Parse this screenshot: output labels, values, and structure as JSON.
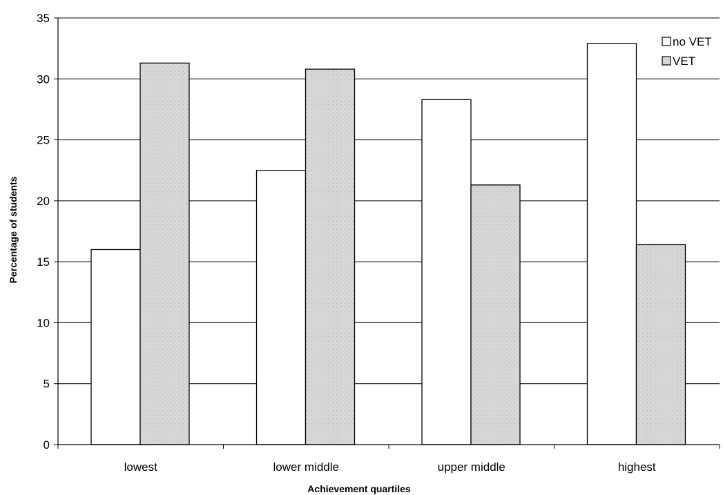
{
  "chart_data": {
    "type": "bar",
    "xlabel": "Achievement quartiles",
    "ylabel": "Percentage of students",
    "ylim": [
      0,
      35
    ],
    "yticks": [
      0,
      5,
      10,
      15,
      20,
      25,
      30,
      35
    ],
    "grid": true,
    "legend_position": "top-right",
    "categories": [
      "lowest",
      "lower middle",
      "upper middle",
      "highest"
    ],
    "series": [
      {
        "name": "no VET",
        "values": [
          16.0,
          22.5,
          28.3,
          32.9
        ],
        "color": "#ffffff"
      },
      {
        "name": "VET",
        "values": [
          31.3,
          30.8,
          21.3,
          16.4
        ],
        "color": "#d6d6d6"
      }
    ]
  }
}
